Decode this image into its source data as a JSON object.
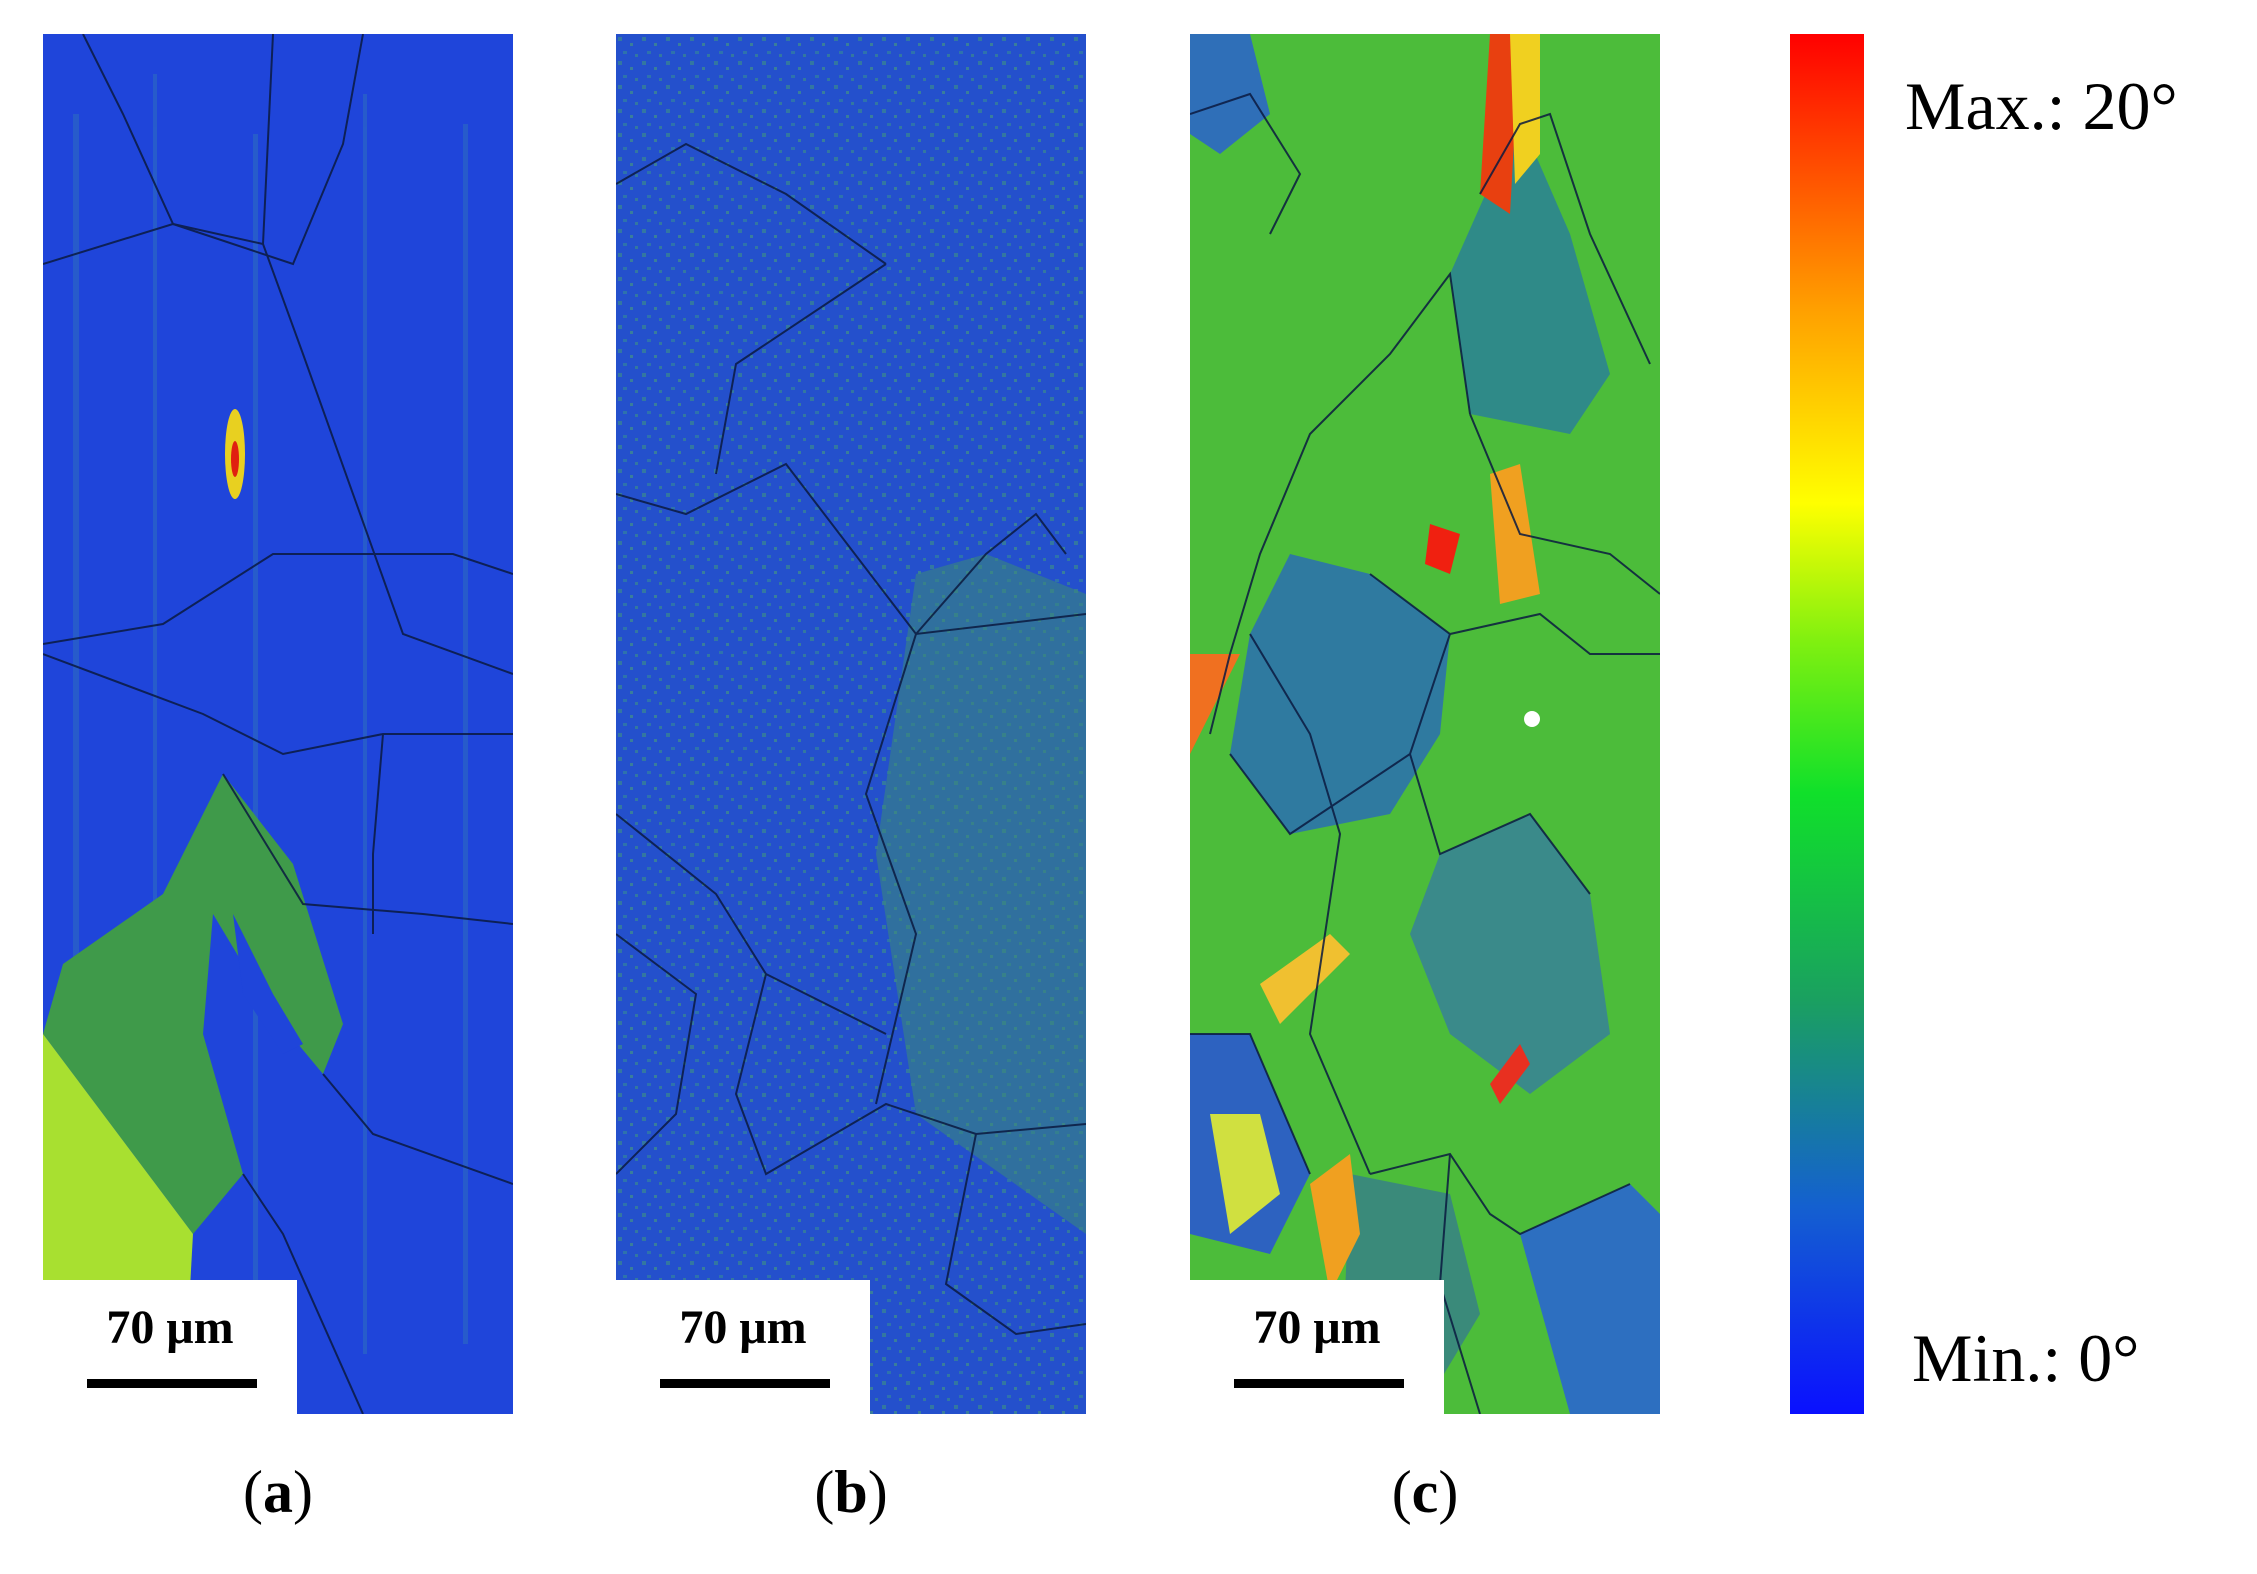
{
  "figure": {
    "panels": [
      {
        "id": "a",
        "label": "a",
        "scale_bar": "70 μm",
        "dominant_color": "#1f47d9"
      },
      {
        "id": "b",
        "label": "b",
        "scale_bar": "70 μm",
        "dominant_color": "#2456c8"
      },
      {
        "id": "c",
        "label": "c",
        "scale_bar": "70 μm",
        "dominant_color": "#55c840"
      }
    ],
    "colorbar": {
      "max_label": "Max.:  20°",
      "min_label": "Min.:  0°",
      "colors": [
        "#0a10ff",
        "#1aa060",
        "#10e02a",
        "#ffff00",
        "#ffa000",
        "#ff0000"
      ]
    }
  }
}
